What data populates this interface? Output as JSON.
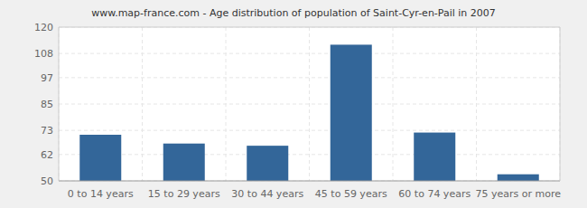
{
  "chart_data": {
    "type": "bar",
    "title": "www.map-france.com - Age distribution of population of Saint-Cyr-en-Pail in 2007",
    "categories": [
      "0 to 14 years",
      "15 to 29 years",
      "30 to 44 years",
      "45 to 59 years",
      "60 to 74 years",
      "75 years or more"
    ],
    "values": [
      71,
      67,
      66,
      112,
      72,
      53
    ],
    "color": "#336699",
    "ylim": [
      50,
      120
    ],
    "yticks": [
      50,
      62,
      73,
      85,
      97,
      108,
      120
    ],
    "grid": true
  }
}
